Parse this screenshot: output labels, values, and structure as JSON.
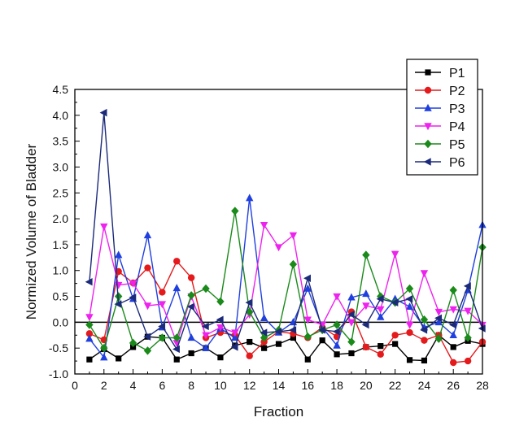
{
  "chart_data": {
    "type": "line",
    "xlabel": "Fraction",
    "ylabel": "Normized Volume of Bladder",
    "xlim": [
      0,
      28
    ],
    "ylim": [
      -1.0,
      4.5
    ],
    "xticks": [
      "0",
      "2",
      "4",
      "6",
      "8",
      "10",
      "12",
      "14",
      "16",
      "18",
      "20",
      "22",
      "24",
      "26",
      "28"
    ],
    "xtick_values": [
      0,
      2,
      4,
      6,
      8,
      10,
      12,
      14,
      16,
      18,
      20,
      22,
      24,
      26,
      28
    ],
    "yticks": [
      "-1.0",
      "-0.5",
      "0.0",
      "0.5",
      "1.0",
      "1.5",
      "2.0",
      "2.5",
      "3.0",
      "3.5",
      "4.0",
      "4.5"
    ],
    "ytick_values": [
      -1.0,
      -0.5,
      0.0,
      0.5,
      1.0,
      1.5,
      2.0,
      2.5,
      3.0,
      3.5,
      4.0,
      4.5
    ],
    "reference_line": 0.0,
    "legend_position": "top-right",
    "grid": false,
    "x": [
      1,
      2,
      3,
      4,
      5,
      6,
      7,
      8,
      9,
      10,
      11,
      12,
      13,
      14,
      15,
      16,
      17,
      18,
      19,
      20,
      21,
      22,
      23,
      24,
      25,
      26,
      27,
      28
    ],
    "series": [
      {
        "name": "P1",
        "color": "#000000",
        "marker": "square",
        "values": [
          -0.72,
          -0.52,
          -0.7,
          -0.48,
          -0.28,
          -0.3,
          -0.72,
          -0.6,
          -0.5,
          -0.68,
          -0.45,
          -0.38,
          -0.5,
          -0.42,
          -0.3,
          -0.72,
          -0.35,
          -0.62,
          -0.6,
          -0.48,
          -0.46,
          -0.42,
          -0.73,
          -0.74,
          -0.25,
          -0.48,
          -0.36,
          -0.42
        ]
      },
      {
        "name": "P2",
        "color": "#e41a1c",
        "marker": "circle",
        "values": [
          -0.22,
          -0.34,
          0.98,
          0.76,
          1.05,
          0.58,
          1.18,
          0.86,
          -0.3,
          -0.2,
          -0.25,
          -0.65,
          -0.38,
          -0.18,
          -0.22,
          -0.3,
          -0.1,
          -0.28,
          0.2,
          -0.48,
          -0.62,
          -0.25,
          -0.2,
          -0.35,
          -0.25,
          -0.78,
          -0.75,
          -0.38
        ]
      },
      {
        "name": "P3",
        "color": "#1f3fdf",
        "marker": "triangle-up",
        "values": [
          -0.32,
          -0.68,
          1.3,
          0.45,
          1.68,
          -0.1,
          0.66,
          -0.3,
          -0.5,
          -0.12,
          -0.3,
          2.4,
          0.08,
          -0.2,
          0.0,
          0.65,
          -0.1,
          -0.45,
          0.48,
          0.55,
          0.1,
          0.45,
          0.3,
          -0.1,
          0.0,
          -0.25,
          0.62,
          1.88
        ]
      },
      {
        "name": "P4",
        "color": "#ee22ee",
        "marker": "triangle-down",
        "values": [
          0.1,
          1.85,
          0.72,
          0.75,
          0.32,
          0.35,
          -0.4,
          0.5,
          -0.25,
          -0.1,
          -0.2,
          0.15,
          1.88,
          1.45,
          1.68,
          0.05,
          -0.05,
          0.5,
          0.0,
          0.32,
          0.25,
          1.32,
          -0.05,
          0.95,
          0.2,
          0.25,
          0.22,
          -0.05
        ]
      },
      {
        "name": "P5",
        "color": "#1a8a1a",
        "marker": "diamond",
        "values": [
          -0.05,
          -0.5,
          0.5,
          -0.4,
          -0.55,
          -0.3,
          -0.3,
          0.52,
          0.65,
          0.4,
          2.15,
          0.2,
          -0.3,
          -0.15,
          1.12,
          -0.28,
          -0.15,
          -0.05,
          -0.38,
          1.3,
          0.5,
          0.38,
          0.65,
          0.05,
          -0.32,
          0.62,
          -0.3,
          1.45
        ]
      },
      {
        "name": "P6",
        "color": "#1c2a7a",
        "marker": "triangle-left",
        "values": [
          0.78,
          4.05,
          0.35,
          0.48,
          -0.28,
          -0.08,
          -0.52,
          0.3,
          -0.08,
          0.05,
          -0.48,
          0.38,
          -0.2,
          -0.18,
          -0.15,
          0.85,
          -0.15,
          -0.18,
          0.15,
          -0.05,
          0.45,
          0.38,
          0.45,
          -0.15,
          0.08,
          -0.05,
          0.7,
          -0.12
        ]
      }
    ]
  }
}
